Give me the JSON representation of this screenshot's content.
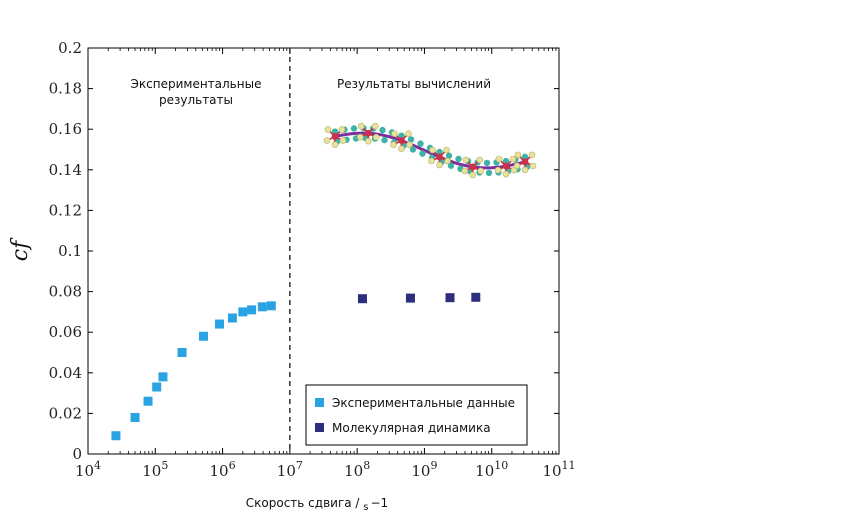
{
  "chart_data": {
    "type": "scatter",
    "xscale": "log",
    "xlim": [
      10000,
      100000000000
    ],
    "ylim": [
      0,
      0.2
    ],
    "xlabel_main": "Скорость сдвига / ",
    "xlabel_unit": "s",
    "xlabel_exp": "−1",
    "ylabel": "cf",
    "x_ticks": [
      {
        "value": 10000,
        "base": "10",
        "exp": "4"
      },
      {
        "value": 100000,
        "base": "10",
        "exp": "5"
      },
      {
        "value": 1000000,
        "base": "10",
        "exp": "6"
      },
      {
        "value": 10000000,
        "base": "10",
        "exp": "7"
      },
      {
        "value": 100000000,
        "base": "10",
        "exp": "8"
      },
      {
        "value": 1000000000,
        "base": "10",
        "exp": "9"
      },
      {
        "value": 10000000000,
        "base": "10",
        "exp": "10"
      },
      {
        "value": 100000000000,
        "base": "10",
        "exp": "11"
      }
    ],
    "y_ticks": [
      {
        "value": 0,
        "label": "0"
      },
      {
        "value": 0.02,
        "label": "0.02"
      },
      {
        "value": 0.04,
        "label": "0.04"
      },
      {
        "value": 0.06,
        "label": "0.06"
      },
      {
        "value": 0.08,
        "label": "0.08"
      },
      {
        "value": 0.1,
        "label": "0.1"
      },
      {
        "value": 0.12,
        "label": "0.12"
      },
      {
        "value": 0.14,
        "label": "0.14"
      },
      {
        "value": 0.16,
        "label": "0.16"
      },
      {
        "value": 0.18,
        "label": "0.18"
      },
      {
        "value": 0.2,
        "label": "0.2"
      }
    ],
    "divider_x": 10000000,
    "annotations": {
      "left_line1": "Экспериментальные",
      "left_line2": "результаты",
      "right": "Результаты вычислений"
    },
    "legend_position": "bottom-right",
    "series": [
      {
        "name": "Экспериментальные данные",
        "color": "#29a3e1",
        "points": [
          {
            "x": 26000,
            "y": 0.009
          },
          {
            "x": 50000,
            "y": 0.018
          },
          {
            "x": 78000,
            "y": 0.026
          },
          {
            "x": 105000,
            "y": 0.033
          },
          {
            "x": 130000,
            "y": 0.038
          },
          {
            "x": 250000,
            "y": 0.05
          },
          {
            "x": 520000,
            "y": 0.058
          },
          {
            "x": 900000,
            "y": 0.064
          },
          {
            "x": 1400000,
            "y": 0.067
          },
          {
            "x": 2000000,
            "y": 0.07
          },
          {
            "x": 2700000,
            "y": 0.071
          },
          {
            "x": 3900000,
            "y": 0.0725
          },
          {
            "x": 5300000,
            "y": 0.073
          }
        ]
      },
      {
        "name": "Молекулярная динамика",
        "color": "#2e2e7f",
        "points": [
          {
            "x": 120000000,
            "y": 0.0765
          },
          {
            "x": 620000000,
            "y": 0.0768
          },
          {
            "x": 2400000000,
            "y": 0.077
          },
          {
            "x": 5800000000,
            "y": 0.0772
          }
        ]
      }
    ],
    "molecule_icon": "hydrocarbon-chain-icon"
  }
}
